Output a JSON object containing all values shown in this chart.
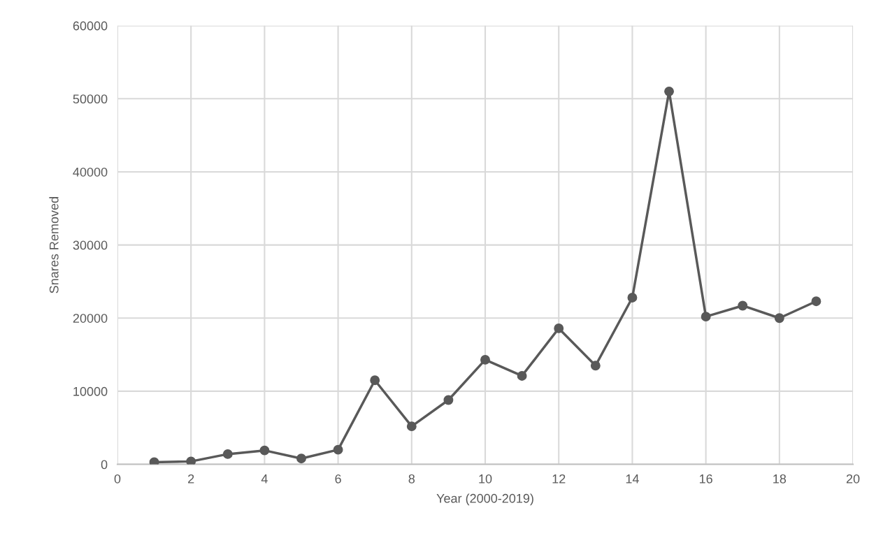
{
  "chart_data": {
    "type": "line",
    "xlabel": "Year (2000-2019)",
    "ylabel": "Snares Removed",
    "x": [
      1,
      2,
      3,
      4,
      5,
      6,
      7,
      8,
      9,
      10,
      11,
      12,
      13,
      14,
      15,
      16,
      17,
      18,
      19
    ],
    "series": [
      {
        "color": "#595959",
        "values": [
          300,
          400,
          1400,
          1900,
          800,
          2000,
          11500,
          5200,
          8800,
          14300,
          12100,
          18600,
          13500,
          22800,
          51000,
          20200,
          21700,
          20000,
          22300
        ]
      }
    ],
    "xlim": [
      0,
      20
    ],
    "xticks": [
      0,
      2,
      4,
      6,
      8,
      10,
      12,
      14,
      16,
      18,
      20
    ],
    "ylim": [
      0,
      60000
    ],
    "yticks": [
      0,
      10000,
      20000,
      30000,
      40000,
      50000,
      60000
    ],
    "grid": true,
    "marker": "circle",
    "line_style": "solid"
  }
}
